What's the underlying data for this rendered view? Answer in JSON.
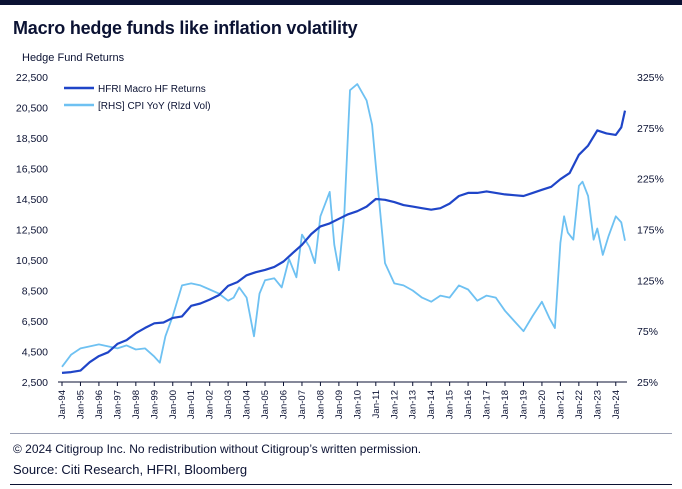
{
  "header": {
    "title": "Macro hedge funds like inflation volatility"
  },
  "footer": {
    "copyright": "© 2024 Citigroup Inc. No redistribution without Citigroup’s written permission.",
    "source": "Source: Citi Research, HFRI, Bloomberg"
  },
  "colors": {
    "hfri": "#1f45c8",
    "cpi": "#6ec1f2",
    "text": "#0b1233",
    "accent_bar": "#0b1233"
  },
  "chart_data": {
    "type": "line",
    "title": "Macro hedge funds like inflation volatility",
    "left_axis_label": "Hedge Fund Returns",
    "legend_position": "top-left",
    "grid": false,
    "x_tick_labels": [
      "Jan-94",
      "Jan-95",
      "Jan-96",
      "Jan-97",
      "Jan-98",
      "Jan-99",
      "Jan-00",
      "Jan-01",
      "Jan-02",
      "Jan-03",
      "Jan-04",
      "Jan-05",
      "Jan-06",
      "Jan-07",
      "Jan-08",
      "Jan-09",
      "Jan-10",
      "Jan-11",
      "Jan-12",
      "Jan-13",
      "Jan-14",
      "Jan-15",
      "Jan-16",
      "Jan-17",
      "Jan-18",
      "Jan-19",
      "Jan-20",
      "Jan-21",
      "Jan-22",
      "Jan-23",
      "Jan-24"
    ],
    "y_left": {
      "ylim": [
        2500,
        22500
      ],
      "tick_labels": [
        "2,500",
        "4,500",
        "6,500",
        "8,500",
        "10,500",
        "12,500",
        "14,500",
        "16,500",
        "18,500",
        "20,500",
        "22,500"
      ]
    },
    "y_right": {
      "ylim": [
        25,
        325
      ],
      "tick_labels": [
        "25%",
        "75%",
        "125%",
        "175%",
        "225%",
        "275%",
        "325%"
      ]
    },
    "series": [
      {
        "name": "HFRI Macro HF Returns",
        "axis": "left",
        "x": [
          1994.0,
          1994.5,
          1995.0,
          1995.5,
          1996.0,
          1996.5,
          1997.0,
          1997.5,
          1998.0,
          1998.5,
          1999.0,
          1999.5,
          2000.0,
          2000.5,
          2001.0,
          2001.5,
          2002.0,
          2002.5,
          2003.0,
          2003.5,
          2004.0,
          2004.5,
          2005.0,
          2005.5,
          2006.0,
          2006.5,
          2007.0,
          2007.5,
          2008.0,
          2008.5,
          2009.0,
          2009.5,
          2010.0,
          2010.5,
          2011.0,
          2011.5,
          2012.0,
          2012.5,
          2013.0,
          2013.5,
          2014.0,
          2014.5,
          2015.0,
          2015.5,
          2016.0,
          2016.5,
          2017.0,
          2017.5,
          2018.0,
          2018.5,
          2019.0,
          2019.5,
          2020.0,
          2020.5,
          2021.0,
          2021.5,
          2022.0,
          2022.5,
          2023.0,
          2023.5,
          2024.0,
          2024.3,
          2024.5
        ],
        "values": [
          3100,
          3150,
          3250,
          3800,
          4200,
          4450,
          5000,
          5250,
          5700,
          6050,
          6350,
          6400,
          6700,
          6800,
          7500,
          7650,
          7900,
          8200,
          8800,
          9050,
          9500,
          9700,
          9850,
          10050,
          10400,
          10950,
          11500,
          12200,
          12700,
          12900,
          13200,
          13500,
          13700,
          14000,
          14500,
          14450,
          14300,
          14100,
          14000,
          13900,
          13800,
          13900,
          14200,
          14700,
          14900,
          14900,
          15000,
          14900,
          14800,
          14750,
          14700,
          14900,
          15100,
          15300,
          15800,
          16200,
          17400,
          18000,
          19000,
          18800,
          18700,
          19200,
          20300
        ]
      },
      {
        "name": "[RHS] CPI YoY (Rlzd Vol)",
        "axis": "right",
        "x": [
          1994.0,
          1994.5,
          1995.0,
          1995.5,
          1996.0,
          1996.5,
          1997.0,
          1997.5,
          1998.0,
          1998.5,
          1999.0,
          1999.3,
          1999.6,
          2000.0,
          2000.5,
          2001.0,
          2001.5,
          2002.0,
          2002.5,
          2003.0,
          2003.3,
          2003.6,
          2004.0,
          2004.4,
          2004.7,
          2005.0,
          2005.5,
          2005.9,
          2006.3,
          2006.7,
          2007.0,
          2007.4,
          2007.7,
          2008.0,
          2008.5,
          2008.75,
          2009.0,
          2009.3,
          2009.6,
          2010.0,
          2010.5,
          2010.8,
          2011.0,
          2011.5,
          2012.0,
          2012.5,
          2013.0,
          2013.5,
          2014.0,
          2014.5,
          2015.0,
          2015.5,
          2016.0,
          2016.5,
          2017.0,
          2017.5,
          2018.0,
          2018.5,
          2019.0,
          2019.5,
          2020.0,
          2020.4,
          2020.7,
          2021.0,
          2021.2,
          2021.4,
          2021.7,
          2022.0,
          2022.2,
          2022.5,
          2022.8,
          2023.0,
          2023.3,
          2023.6,
          2024.0,
          2024.3,
          2024.5
        ],
        "values": [
          40,
          52,
          58,
          60,
          62,
          60,
          58,
          61,
          57,
          58,
          50,
          44,
          70,
          90,
          120,
          122,
          120,
          116,
          112,
          105,
          108,
          118,
          108,
          70,
          112,
          125,
          127,
          118,
          146,
          128,
          170,
          158,
          142,
          188,
          212,
          160,
          135,
          192,
          312,
          318,
          302,
          278,
          238,
          142,
          122,
          120,
          115,
          108,
          104,
          110,
          108,
          120,
          116,
          105,
          110,
          108,
          95,
          85,
          75,
          90,
          104,
          88,
          78,
          162,
          188,
          172,
          165,
          218,
          222,
          208,
          165,
          176,
          150,
          168,
          188,
          182,
          164
        ]
      }
    ]
  }
}
